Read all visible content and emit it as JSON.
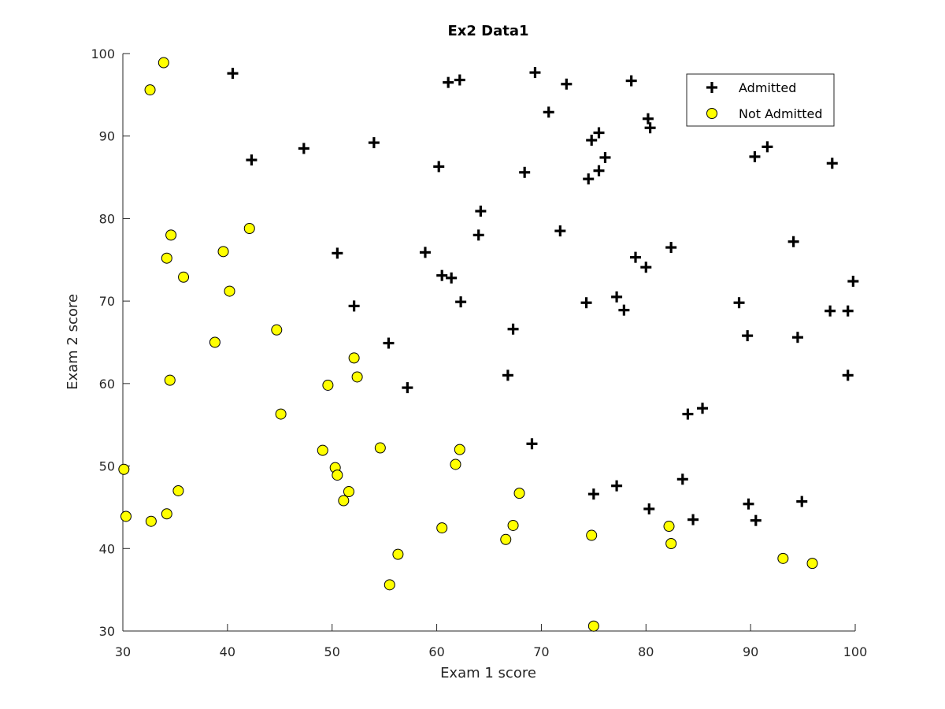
{
  "chart_data": {
    "type": "scatter",
    "title": "Ex2 Data1",
    "xlabel": "Exam 1 score",
    "ylabel": "Exam 2 score",
    "xlim": [
      30,
      100
    ],
    "ylim": [
      30,
      100
    ],
    "xticks": [
      30,
      40,
      50,
      60,
      70,
      80,
      90,
      100
    ],
    "yticks": [
      30,
      40,
      50,
      60,
      70,
      80,
      90,
      100
    ],
    "grid": false,
    "legend_position": "top-right",
    "series": [
      {
        "name": "Admitted",
        "marker": "plus",
        "color": "#000000",
        "points": [
          [
            40.5,
            97.6
          ],
          [
            42.3,
            87.1
          ],
          [
            47.3,
            88.5
          ],
          [
            54.0,
            89.2
          ],
          [
            50.5,
            75.8
          ],
          [
            52.1,
            69.4
          ],
          [
            55.4,
            64.9
          ],
          [
            57.2,
            59.5
          ],
          [
            58.9,
            75.9
          ],
          [
            60.2,
            86.3
          ],
          [
            60.5,
            73.1
          ],
          [
            61.4,
            72.8
          ],
          [
            62.3,
            69.9
          ],
          [
            61.1,
            96.5
          ],
          [
            62.2,
            96.8
          ],
          [
            64.0,
            78.0
          ],
          [
            64.2,
            80.9
          ],
          [
            66.8,
            61.0
          ],
          [
            67.3,
            66.6
          ],
          [
            68.4,
            85.6
          ],
          [
            69.1,
            52.7
          ],
          [
            69.4,
            97.7
          ],
          [
            70.7,
            92.9
          ],
          [
            71.8,
            78.5
          ],
          [
            72.4,
            96.3
          ],
          [
            74.3,
            69.8
          ],
          [
            74.5,
            84.8
          ],
          [
            74.8,
            89.5
          ],
          [
            75.5,
            90.4
          ],
          [
            75.5,
            85.8
          ],
          [
            76.1,
            87.4
          ],
          [
            75.0,
            46.6
          ],
          [
            77.2,
            70.5
          ],
          [
            77.2,
            47.6
          ],
          [
            77.9,
            68.9
          ],
          [
            78.6,
            96.7
          ],
          [
            79.0,
            75.3
          ],
          [
            80.0,
            74.1
          ],
          [
            80.2,
            92.1
          ],
          [
            80.4,
            91.0
          ],
          [
            80.3,
            44.8
          ],
          [
            82.4,
            76.5
          ],
          [
            83.5,
            48.4
          ],
          [
            84.0,
            56.3
          ],
          [
            84.5,
            43.5
          ],
          [
            85.4,
            57.0
          ],
          [
            88.9,
            69.8
          ],
          [
            89.7,
            65.8
          ],
          [
            89.8,
            45.4
          ],
          [
            90.4,
            87.5
          ],
          [
            90.5,
            43.4
          ],
          [
            91.6,
            88.7
          ],
          [
            94.1,
            77.2
          ],
          [
            94.5,
            65.6
          ],
          [
            94.9,
            45.7
          ],
          [
            97.6,
            68.8
          ],
          [
            97.8,
            86.7
          ],
          [
            99.3,
            68.8
          ],
          [
            99.3,
            61.0
          ],
          [
            99.8,
            72.4
          ]
        ]
      },
      {
        "name": "Not Admitted",
        "marker": "circle",
        "color": "#ffff00",
        "edge_color": "#000000",
        "points": [
          [
            32.6,
            95.6
          ],
          [
            33.9,
            98.9
          ],
          [
            34.6,
            78.0
          ],
          [
            34.2,
            75.2
          ],
          [
            35.8,
            72.9
          ],
          [
            39.6,
            76.0
          ],
          [
            42.1,
            78.8
          ],
          [
            40.2,
            71.2
          ],
          [
            38.8,
            65.0
          ],
          [
            34.5,
            60.4
          ],
          [
            44.7,
            66.5
          ],
          [
            45.1,
            56.3
          ],
          [
            30.1,
            49.6
          ],
          [
            30.3,
            43.9
          ],
          [
            32.7,
            43.3
          ],
          [
            34.2,
            44.2
          ],
          [
            35.3,
            47.0
          ],
          [
            49.1,
            51.9
          ],
          [
            50.3,
            49.8
          ],
          [
            50.5,
            48.9
          ],
          [
            51.1,
            45.8
          ],
          [
            51.6,
            46.9
          ],
          [
            52.1,
            63.1
          ],
          [
            52.4,
            60.8
          ],
          [
            49.6,
            59.8
          ],
          [
            54.6,
            52.2
          ],
          [
            55.5,
            35.6
          ],
          [
            56.3,
            39.3
          ],
          [
            60.5,
            42.5
          ],
          [
            61.8,
            50.2
          ],
          [
            62.2,
            52.0
          ],
          [
            66.6,
            41.1
          ],
          [
            67.3,
            42.8
          ],
          [
            67.9,
            46.7
          ],
          [
            74.8,
            41.6
          ],
          [
            75.0,
            30.6
          ],
          [
            82.2,
            42.7
          ],
          [
            82.4,
            40.6
          ],
          [
            93.1,
            38.8
          ],
          [
            95.9,
            38.2
          ]
        ]
      }
    ]
  }
}
